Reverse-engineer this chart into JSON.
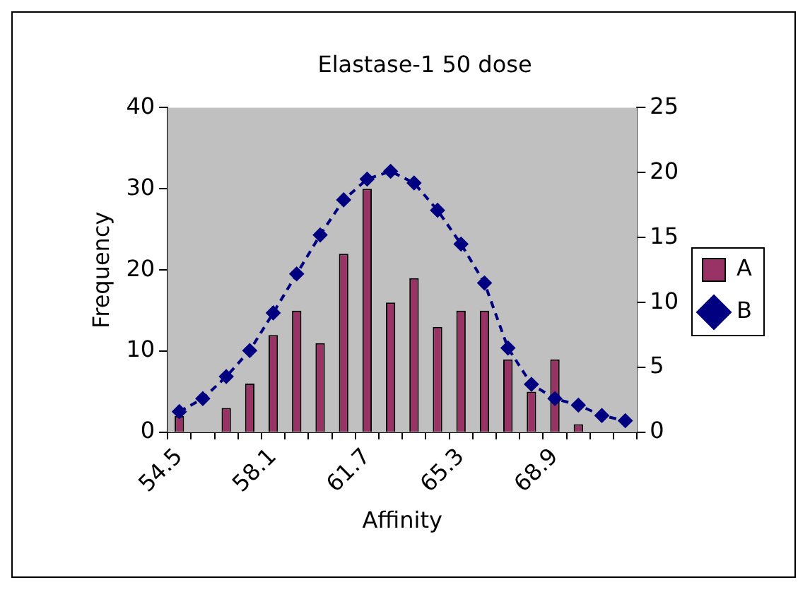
{
  "chart_data": {
    "type": "bar",
    "title": "Elastase-1 50 dose",
    "xlabel": "Affinity",
    "ylabel": "Frequency",
    "categories": [
      "54.5",
      null,
      null,
      null,
      "58.1",
      null,
      null,
      null,
      "61.7",
      null,
      null,
      null,
      "65.3",
      null,
      null,
      null,
      "68.9",
      null,
      null,
      null
    ],
    "series": [
      {
        "name": "A",
        "color": "#993366",
        "values": [
          2,
          0,
          3,
          6,
          12,
          15,
          11,
          22,
          30,
          16,
          19,
          13,
          15,
          15,
          9,
          5,
          9,
          1,
          0,
          0
        ]
      },
      {
        "name": "B",
        "type": "line",
        "axis": "y2",
        "color": "#000080",
        "values": [
          1.6,
          2.6,
          4.3,
          6.3,
          9.2,
          12.2,
          15.2,
          17.9,
          19.5,
          20.1,
          19.2,
          17.1,
          14.5,
          11.5,
          6.5,
          3.7,
          2.6,
          2.1,
          1.3,
          0.9
        ]
      }
    ],
    "ylim": [
      0,
      40
    ],
    "yticks": [
      0,
      10,
      20,
      30,
      40
    ],
    "y2lim": [
      0,
      25
    ],
    "y2ticks": [
      0,
      5,
      10,
      15,
      20,
      25
    ],
    "grid": false,
    "legend": "right",
    "marker": "diamond",
    "line_style": "dashed"
  }
}
